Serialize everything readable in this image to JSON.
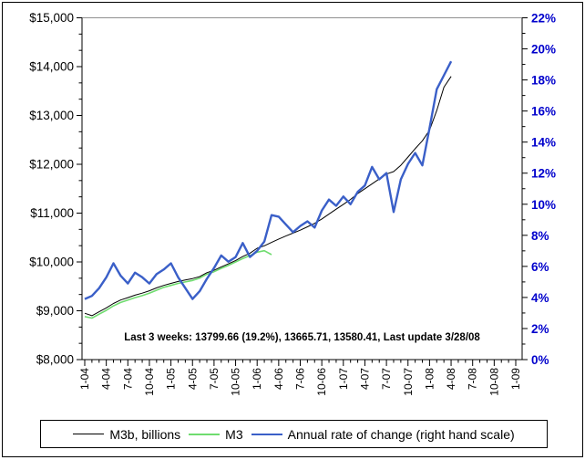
{
  "chart_data": {
    "type": "line",
    "title": "",
    "annotation": "Last 3 weeks: 13799.66 (19.2%), 13665.71, 13580.41, Last update 3/28/08",
    "grid": false,
    "legend_position": "bottom",
    "x_axis": {
      "unit": "month",
      "start": "1-04",
      "end": "1-09",
      "months_total": 60,
      "label_every_months": 3,
      "tick_labels": [
        "1-04",
        "4-04",
        "7-04",
        "10-04",
        "1-05",
        "4-05",
        "7-05",
        "10-05",
        "1-06",
        "4-06",
        "7-06",
        "10-06",
        "1-07",
        "4-07",
        "7-07",
        "10-07",
        "1-08",
        "4-08",
        "7-08",
        "10-08",
        "1-09"
      ]
    },
    "left_axis": {
      "min": 8000,
      "max": 15000,
      "major": 1000,
      "minor_divisions": 3,
      "tick_labels": [
        "$8,000",
        "$9,000",
        "$10,000",
        "$11,000",
        "$12,000",
        "$13,000",
        "$14,000",
        "$15,000"
      ],
      "color": "#000000"
    },
    "right_axis": {
      "min": 0,
      "max": 22,
      "major": 2,
      "minor": 1,
      "tick_labels": [
        "0%",
        "2%",
        "4%",
        "6%",
        "8%",
        "10%",
        "12%",
        "14%",
        "16%",
        "18%",
        "20%",
        "22%"
      ],
      "color": "#0000CC"
    },
    "series": [
      {
        "id": "m3b",
        "name": "M3b, billions",
        "axis": "left",
        "color": "#000000",
        "width": 1,
        "start_month": "1-04",
        "end_month": "4-08",
        "values": [
          8950,
          8900,
          8980,
          9060,
          9150,
          9220,
          9270,
          9320,
          9360,
          9410,
          9470,
          9520,
          9560,
          9600,
          9630,
          9660,
          9700,
          9780,
          9830,
          9900,
          9960,
          10030,
          10110,
          10180,
          10280,
          10330,
          10400,
          10470,
          10530,
          10590,
          10650,
          10720,
          10790,
          10880,
          10980,
          11080,
          11180,
          11280,
          11400,
          11500,
          11600,
          11700,
          11800,
          11850,
          11980,
          12150,
          12320,
          12480,
          12700,
          13100,
          13580,
          13800
        ]
      },
      {
        "id": "m3",
        "name": "M3",
        "axis": "left",
        "color": "#6FDC6F",
        "width": 1.6,
        "start_month": "1-04",
        "end_month": "3-06",
        "values": [
          8880,
          8850,
          8930,
          9010,
          9100,
          9170,
          9220,
          9270,
          9310,
          9360,
          9420,
          9480,
          9520,
          9560,
          9590,
          9620,
          9670,
          9750,
          9800,
          9870,
          9930,
          10000,
          10070,
          10130,
          10200,
          10230,
          10150
        ]
      },
      {
        "id": "rate",
        "name": "Annual rate of change (right hand scale)",
        "axis": "right",
        "color": "#3A5FC8",
        "width": 2.4,
        "start_month": "1-04",
        "end_month": "4-08",
        "values": [
          3.9,
          4.1,
          4.6,
          5.3,
          6.2,
          5.4,
          4.9,
          5.6,
          5.3,
          4.9,
          5.5,
          5.8,
          6.2,
          5.3,
          4.6,
          3.9,
          4.4,
          5.2,
          5.9,
          6.7,
          6.3,
          6.6,
          7.5,
          6.6,
          7.0,
          7.6,
          9.3,
          9.2,
          8.7,
          8.2,
          8.6,
          8.9,
          8.5,
          9.6,
          10.3,
          9.9,
          10.5,
          10.0,
          10.8,
          11.2,
          12.4,
          11.6,
          12.0,
          9.5,
          11.6,
          12.6,
          13.3,
          12.5,
          14.9,
          17.4,
          18.3,
          19.2
        ]
      }
    ]
  }
}
